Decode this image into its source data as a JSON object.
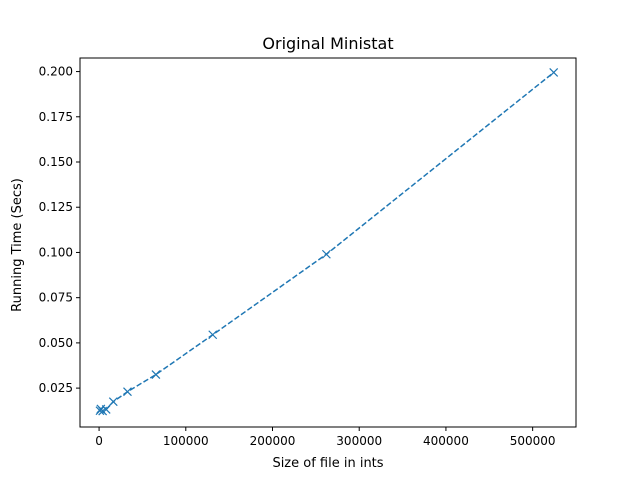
{
  "chart_data": {
    "type": "line",
    "title": "Original Ministat",
    "xlabel": "Size of file in ints",
    "ylabel": "Running Time (Secs)",
    "xlim": [
      -22000,
      550000
    ],
    "ylim": [
      0.0035,
      0.2075
    ],
    "x_ticks": [
      0,
      100000,
      200000,
      300000,
      400000,
      500000
    ],
    "x_tick_labels": [
      "0",
      "100000",
      "200000",
      "300000",
      "400000",
      "500000"
    ],
    "y_ticks": [
      0.025,
      0.05,
      0.075,
      0.1,
      0.125,
      0.15,
      0.175,
      0.2
    ],
    "y_tick_labels": [
      "0.025",
      "0.050",
      "0.075",
      "0.100",
      "0.125",
      "0.150",
      "0.175",
      "0.200"
    ],
    "grid": false,
    "series": [
      {
        "color": "#1f77b4",
        "line_style": "dashed",
        "marker": "x",
        "x": [
          1024,
          2048,
          4096,
          8192,
          16384,
          32768,
          65536,
          131072,
          262144,
          524288
        ],
        "y": [
          0.0125,
          0.0135,
          0.0123,
          0.0132,
          0.0175,
          0.023,
          0.0325,
          0.0545,
          0.099,
          0.1995
        ]
      }
    ]
  }
}
